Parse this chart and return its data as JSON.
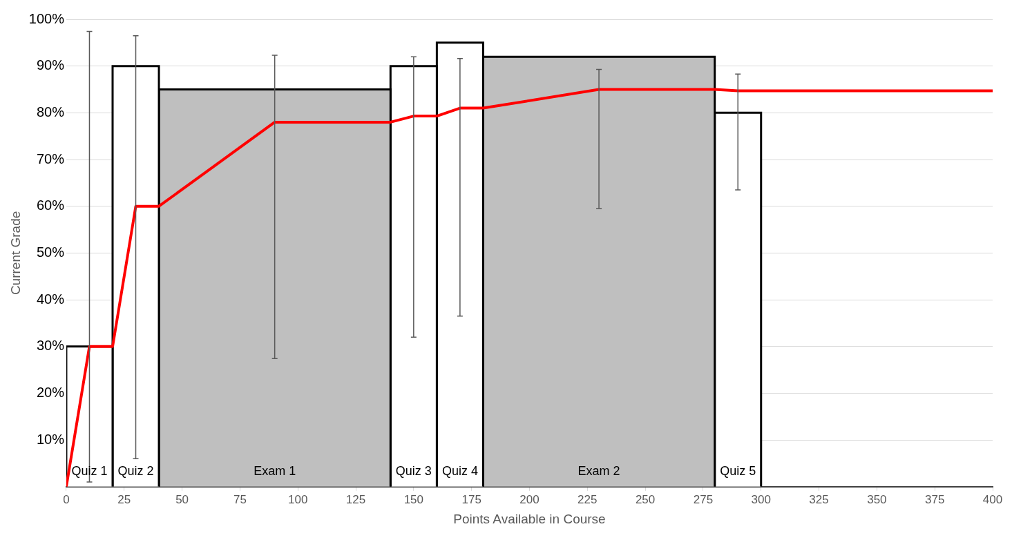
{
  "chart_data": {
    "type": "histogram",
    "xlabel": "Points Available in Course",
    "ylabel": "Current Grade",
    "categories": [
      "Quiz 1",
      "Quiz 2",
      "Exam 1",
      "Quiz 3",
      "Quiz 4",
      "Exam 2",
      "Quiz 5"
    ],
    "bins": [
      0,
      20,
      40,
      140,
      160,
      180,
      280,
      300
    ],
    "values": [
      30,
      90,
      85,
      90,
      95,
      92,
      80
    ],
    "colors": [
      "#ffffff",
      "#ffffff",
      "#bfbfbf",
      "#ffffff",
      "#ffffff",
      "#bfbfbf",
      "#ffffff"
    ],
    "errors": [
      [
        1,
        97.4
      ],
      [
        6,
        96.5
      ],
      [
        27.4,
        92.3
      ],
      [
        32,
        92
      ],
      [
        36.5,
        91.6
      ],
      [
        59.5,
        89.3
      ],
      [
        63.5,
        88.3
      ]
    ],
    "series": [
      {
        "type": "line",
        "color": "#ff0000",
        "x": [
          0,
          10,
          20,
          30,
          40,
          90,
          140,
          150,
          160,
          170,
          180,
          230,
          280,
          290,
          400
        ],
        "values": [
          0,
          30,
          30,
          60,
          60,
          78,
          78,
          79.3,
          79.3,
          81,
          81,
          85,
          85,
          84.7,
          84.7
        ]
      }
    ],
    "xlim": [
      0,
      400
    ],
    "xticks": [
      0,
      25,
      50,
      75,
      100,
      125,
      150,
      175,
      200,
      225,
      250,
      275,
      300,
      325,
      350,
      375,
      400
    ],
    "ylim": [
      0,
      100
    ],
    "yticks": [
      {
        "value": 0,
        "label": null
      },
      {
        "value": 10,
        "label": "10%"
      },
      {
        "value": 20,
        "label": "20%"
      },
      {
        "value": 30,
        "label": "30%"
      },
      {
        "value": 40,
        "label": "40%"
      },
      {
        "value": 50,
        "label": "50%"
      },
      {
        "value": 60,
        "label": "60%"
      },
      {
        "value": 70,
        "label": "70%"
      },
      {
        "value": 80,
        "label": "80%"
      },
      {
        "value": 90,
        "label": "90%"
      },
      {
        "value": 100,
        "label": "100%"
      }
    ],
    "grid": "y",
    "legend": false
  }
}
